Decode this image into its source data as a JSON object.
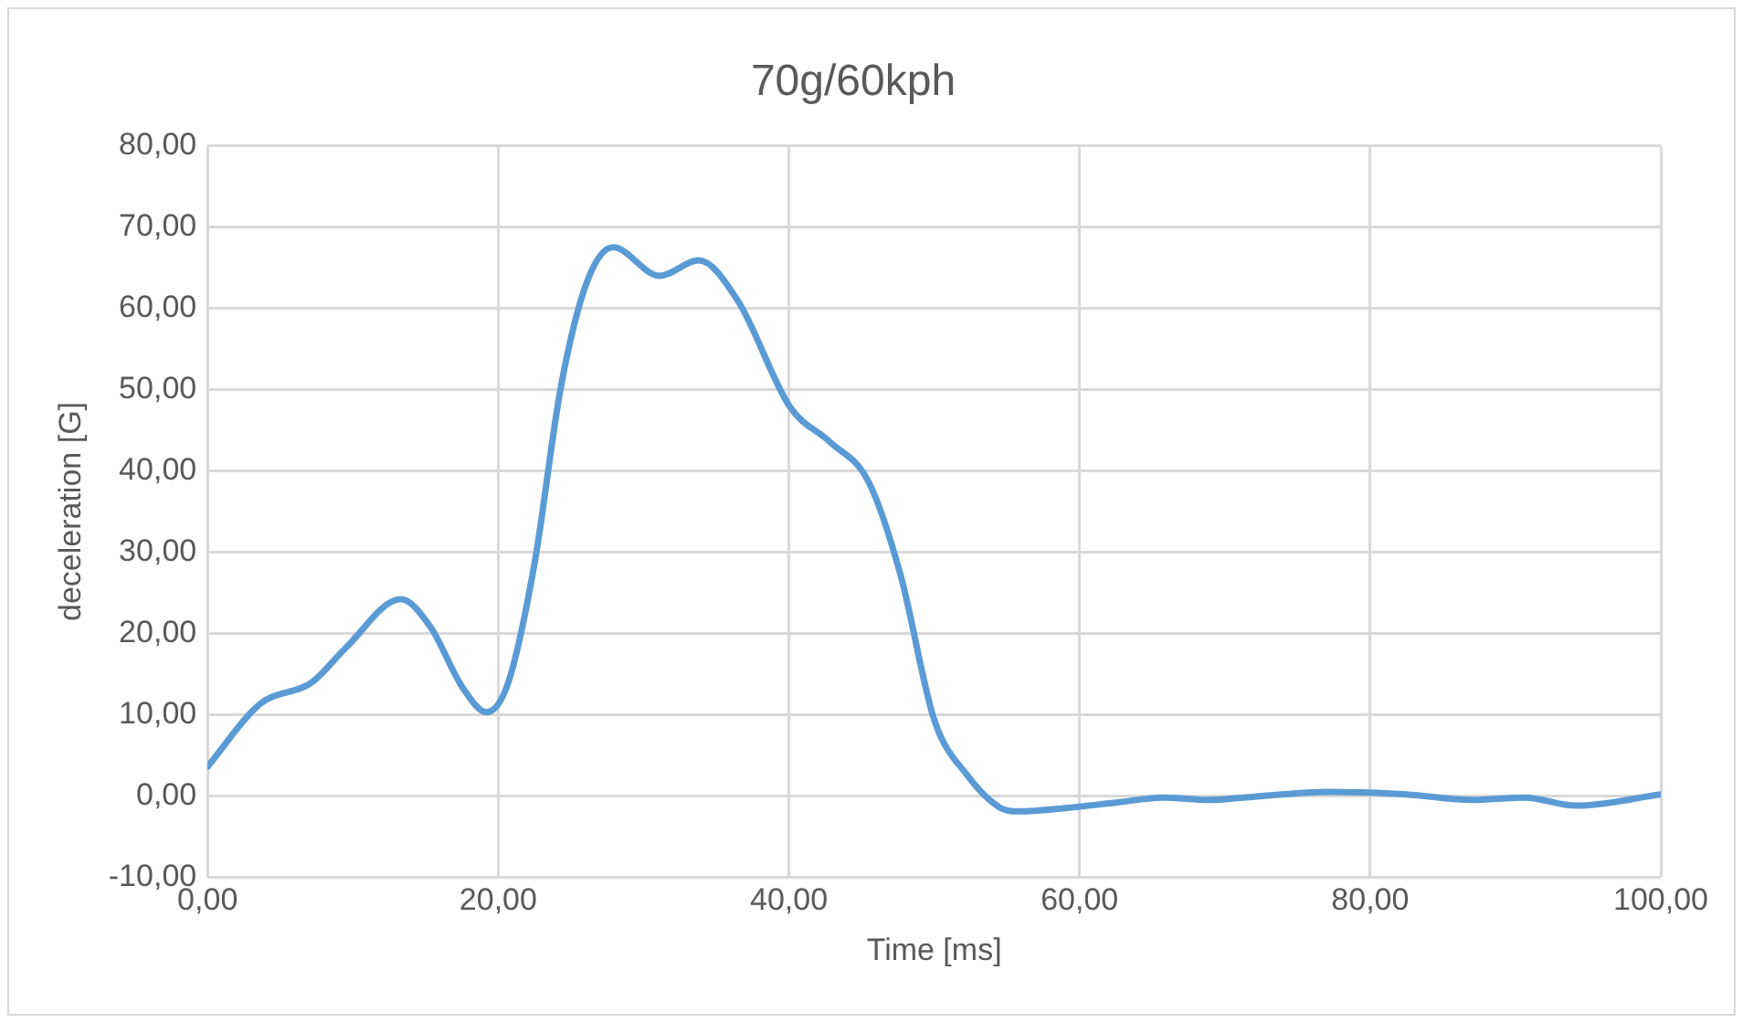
{
  "chart_data": {
    "type": "line",
    "title": "70g/60kph",
    "xlabel": "Time [ms]",
    "ylabel": "deceleration [G]",
    "xlim": [
      0,
      100
    ],
    "xticks": [
      {
        "value": 0,
        "label": "0,00"
      },
      {
        "value": 20,
        "label": "20,00"
      },
      {
        "value": 40,
        "label": "40,00"
      },
      {
        "value": 60,
        "label": "60,00"
      },
      {
        "value": 80,
        "label": "80,00"
      },
      {
        "value": 100,
        "label": "100,00"
      }
    ],
    "ylim": [
      -10,
      80
    ],
    "yticks": [
      {
        "value": -10,
        "label": "-10,00"
      },
      {
        "value": 0,
        "label": "0,00"
      },
      {
        "value": 10,
        "label": "10,00"
      },
      {
        "value": 20,
        "label": "20,00"
      },
      {
        "value": 30,
        "label": "30,00"
      },
      {
        "value": 40,
        "label": "40,00"
      },
      {
        "value": 50,
        "label": "50,00"
      },
      {
        "value": 60,
        "label": "60,00"
      },
      {
        "value": 70,
        "label": "70,00"
      },
      {
        "value": 80,
        "label": "80,00"
      }
    ],
    "grid": true,
    "legend": false,
    "marker": "none",
    "line_style": "solid",
    "series": [
      {
        "color": "#5b9bd5",
        "x": [
          0,
          3.6,
          7.2,
          9.5,
          13.3,
          15.3,
          17.6,
          19.2,
          20.7,
          22.5,
          24.3,
          26.1,
          27.9,
          31.1,
          33.8,
          36.5,
          40.1,
          42.8,
          45.5,
          47.7,
          50.0,
          52.3,
          54.5,
          55.8,
          59.0,
          62.6,
          65.8,
          68.9,
          72.6,
          77.1,
          82.5,
          87.0,
          90.6,
          94.2,
          100
        ],
        "values": [
          3.6,
          11.3,
          14.0,
          18.2,
          24.2,
          20.9,
          13.2,
          10.3,
          14.0,
          28.6,
          50.2,
          63.2,
          67.5,
          64.0,
          65.9,
          60.9,
          47.8,
          43.6,
          38.6,
          27.1,
          9.4,
          2.5,
          -1.4,
          -1.9,
          -1.5,
          -0.8,
          -0.2,
          -0.5,
          0,
          0.5,
          0.2,
          -0.5,
          -0.2,
          -1.2,
          0.2
        ]
      }
    ]
  }
}
